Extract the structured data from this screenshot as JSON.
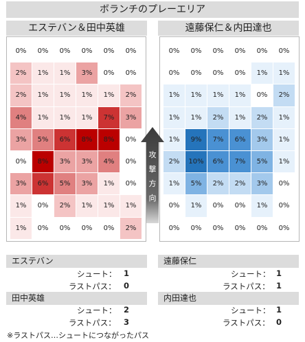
{
  "title": "ボランチのプレーエリア",
  "direction_label": [
    "攻",
    "撃",
    "方",
    "向"
  ],
  "footnote": "※ラストパス…シュートにつながったパス",
  "colors": {
    "left_scale": [
      "#fbe8e8",
      "#f4c4c4",
      "#eba3a3",
      "#e08080",
      "#cc3333",
      "#bb0000"
    ],
    "right_scale": [
      "#e6f1fb",
      "#c3dcf3",
      "#a3c9ec",
      "#7fb3e3",
      "#4a91d3",
      "#2574bb"
    ],
    "gray": "#dcdcdc"
  },
  "chart_data": [
    {
      "type": "heatmap",
      "title": "エステバン＆田中英雄",
      "rows": 9,
      "cols": 6,
      "values": [
        [
          0,
          0,
          0,
          0,
          0,
          0
        ],
        [
          2,
          1,
          1,
          3,
          0,
          0
        ],
        [
          2,
          1,
          1,
          1,
          1,
          2
        ],
        [
          4,
          1,
          1,
          1,
          7,
          3
        ],
        [
          3,
          5,
          6,
          8,
          8,
          0
        ],
        [
          0,
          8,
          3,
          3,
          4,
          0
        ],
        [
          3,
          6,
          5,
          3,
          1,
          0
        ],
        [
          1,
          0,
          2,
          1,
          1,
          1
        ],
        [
          1,
          0,
          0,
          0,
          0,
          2
        ]
      ],
      "unit": "%"
    },
    {
      "type": "heatmap",
      "title": "遠藤保仁＆内田達也",
      "rows": 9,
      "cols": 6,
      "values": [
        [
          0,
          0,
          0,
          0,
          0,
          0
        ],
        [
          0,
          0,
          0,
          0,
          1,
          1
        ],
        [
          1,
          1,
          1,
          1,
          0,
          2
        ],
        [
          1,
          1,
          2,
          1,
          2,
          1
        ],
        [
          1,
          9,
          7,
          6,
          3,
          1
        ],
        [
          2,
          10,
          6,
          7,
          5,
          1
        ],
        [
          1,
          5,
          2,
          2,
          3,
          0
        ],
        [
          0,
          1,
          0,
          0,
          1,
          0
        ],
        [
          0,
          0,
          0,
          0,
          0,
          0
        ]
      ],
      "unit": "%"
    }
  ],
  "stats": [
    {
      "name": "エステバン",
      "shot_label": "シュート：",
      "shot": "1",
      "pass_label": "ラストパス：",
      "pass": "0"
    },
    {
      "name": "遠藤保仁",
      "shot_label": "シュート：",
      "shot": "1",
      "pass_label": "ラストパス：",
      "pass": "1"
    },
    {
      "name": "田中英雄",
      "shot_label": "シュート：",
      "shot": "2",
      "pass_label": "ラストパス：",
      "pass": "3"
    },
    {
      "name": "内田達也",
      "shot_label": "シュート：",
      "shot": "1",
      "pass_label": "ラストパス：",
      "pass": "0"
    }
  ]
}
